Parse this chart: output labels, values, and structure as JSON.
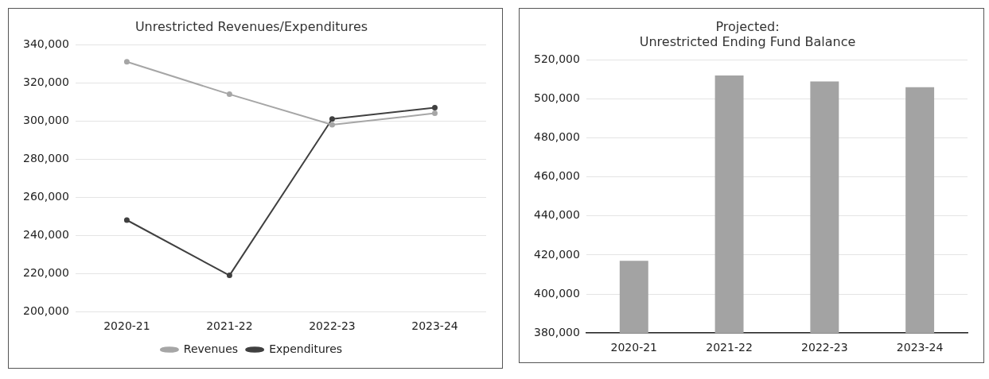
{
  "chart_data": [
    {
      "type": "line",
      "title": "Unrestricted Revenues/Expenditures",
      "categories": [
        "2020-21",
        "2021-22",
        "2022-23",
        "2023-24"
      ],
      "series": [
        {
          "name": "Revenues",
          "color": "#a6a6a6",
          "values": [
            331000,
            314000,
            298000,
            304000
          ]
        },
        {
          "name": "Expenditures",
          "color": "#404040",
          "values": [
            248000,
            219000,
            301000,
            307000
          ]
        }
      ],
      "ylim": [
        200000,
        340000
      ],
      "yticks": [
        {
          "value": 200000,
          "label": "200,000"
        },
        {
          "value": 220000,
          "label": "220,000"
        },
        {
          "value": 240000,
          "label": "240,000"
        },
        {
          "value": 260000,
          "label": "260,000"
        },
        {
          "value": 280000,
          "label": "280,000"
        },
        {
          "value": 300000,
          "label": "300,000"
        },
        {
          "value": 320000,
          "label": "320,000"
        },
        {
          "value": 340000,
          "label": "340,000"
        }
      ],
      "grid": "y",
      "legend": "bottom",
      "marker": "circle"
    },
    {
      "type": "bar",
      "title": "Projected:\nUnrestricted Ending Fund Balance",
      "categories": [
        "2020-21",
        "2021-22",
        "2022-23",
        "2023-24"
      ],
      "values": [
        417000,
        512000,
        509000,
        506000
      ],
      "color": "#a3a3a3",
      "ylim": [
        380000,
        520000
      ],
      "yticks": [
        {
          "value": 380000,
          "label": "380,000"
        },
        {
          "value": 400000,
          "label": "400,000"
        },
        {
          "value": 420000,
          "label": "420,000"
        },
        {
          "value": 440000,
          "label": "440,000"
        },
        {
          "value": 460000,
          "label": "460,000"
        },
        {
          "value": 480000,
          "label": "480,000"
        },
        {
          "value": 500000,
          "label": "500,000"
        },
        {
          "value": 520000,
          "label": "520,000"
        }
      ],
      "grid": "y"
    }
  ]
}
